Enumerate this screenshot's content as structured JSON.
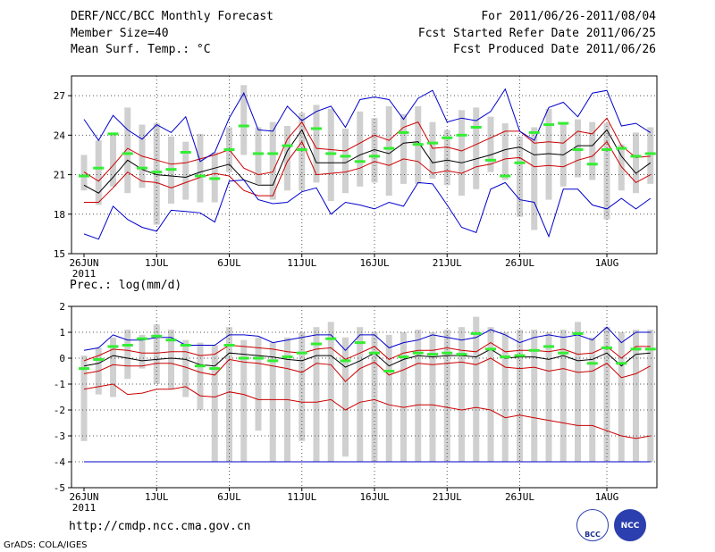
{
  "header": {
    "title": "DERF/NCC/BCC Monthly Forecast",
    "member_size": "Member Size=40",
    "variable": "Mean Surf. Temp.: °C",
    "period": "For 2011/06/26-2011/08/04",
    "start_date": "Fcst Started Refer Date 2011/06/25",
    "produced_date": "Fcst Produced Date 2011/06/26"
  },
  "footer": {
    "url": "http://cmdp.ncc.cma.gov.cn",
    "credit": "GrADS: COLA/IGES",
    "logo_bcc": "BCC",
    "logo_ncc": "NCC"
  },
  "colors": {
    "mean": "#000000",
    "inner_bound": "#cc0000",
    "outer_bound": "#0000cc",
    "climatology": "#33ee33",
    "spread": "#d0d0d0",
    "grid": "#555555"
  },
  "chart_data": [
    {
      "type": "line",
      "title": "Mean Surf. Temp.: °C",
      "xlabel": "",
      "ylabel": "",
      "days": 40,
      "start_date": "2011-06-26",
      "x_ticks": [
        {
          "day": 0,
          "label": "26JUN",
          "sublabel": "2011"
        },
        {
          "day": 5,
          "label": "1JUL"
        },
        {
          "day": 10,
          "label": "6JUL"
        },
        {
          "day": 15,
          "label": "11JUL"
        },
        {
          "day": 20,
          "label": "16JUL"
        },
        {
          "day": 25,
          "label": "21JUL"
        },
        {
          "day": 30,
          "label": "26JUL"
        },
        {
          "day": 36,
          "label": "1AUG"
        }
      ],
      "ylim": [
        15,
        28.5
      ],
      "y_ticks": [
        15,
        18,
        21,
        24,
        27
      ],
      "grid": true,
      "series": [
        {
          "name": "Ensemble mean",
          "role": "mean",
          "values": [
            20.2,
            19.6,
            20.8,
            22.1,
            21.4,
            21.0,
            20.9,
            20.8,
            21.2,
            21.5,
            21.8,
            20.6,
            20.2,
            20.2,
            22.8,
            24.4,
            21.9,
            21.9,
            21.9,
            22.5,
            22.9,
            22.6,
            23.4,
            23.5,
            21.9,
            22.1,
            21.9,
            22.2,
            22.5,
            22.9,
            23.1,
            22.5,
            22.6,
            22.5,
            23.2,
            23.2,
            24.4,
            22.4,
            21.1,
            21.9
          ]
        },
        {
          "name": "Upper inner bound",
          "role": "inner",
          "values": [
            21.2,
            20.5,
            21.7,
            23.0,
            22.4,
            22.1,
            21.8,
            21.9,
            22.2,
            22.5,
            22.9,
            21.5,
            21.0,
            21.2,
            23.7,
            25.0,
            23.0,
            22.9,
            22.8,
            23.4,
            24.0,
            23.6,
            24.6,
            25.0,
            23.0,
            23.1,
            22.8,
            23.3,
            23.8,
            24.3,
            24.3,
            23.4,
            23.5,
            23.4,
            24.3,
            24.1,
            25.3,
            23.2,
            22.3,
            22.4
          ]
        },
        {
          "name": "Lower inner bound",
          "role": "inner",
          "values": [
            18.9,
            18.9,
            20.0,
            21.2,
            20.5,
            20.4,
            20.0,
            20.4,
            20.8,
            21.1,
            20.9,
            19.8,
            19.4,
            19.4,
            22.0,
            23.5,
            21.0,
            21.1,
            21.2,
            21.5,
            22.0,
            21.7,
            22.2,
            22.0,
            21.1,
            21.3,
            21.1,
            21.6,
            21.8,
            22.2,
            22.3,
            21.6,
            21.7,
            21.6,
            22.1,
            22.4,
            23.5,
            21.6,
            20.4,
            21.0
          ]
        },
        {
          "name": "Ensemble maximum",
          "role": "outer",
          "values": [
            25.2,
            23.6,
            25.5,
            24.4,
            23.7,
            24.8,
            24.2,
            25.4,
            22.0,
            22.7,
            25.3,
            27.2,
            24.4,
            24.3,
            26.2,
            25.1,
            25.8,
            26.2,
            24.6,
            26.7,
            26.9,
            26.7,
            25.2,
            26.8,
            27.4,
            25.0,
            25.3,
            25.1,
            25.8,
            27.5,
            24.3,
            23.6,
            26.1,
            26.5,
            25.4,
            27.2,
            27.4,
            24.7,
            24.9,
            24.2
          ]
        },
        {
          "name": "Ensemble minimum",
          "role": "outer",
          "values": [
            16.5,
            16.1,
            18.6,
            17.6,
            17.0,
            16.7,
            18.3,
            18.2,
            18.1,
            17.4,
            20.5,
            20.6,
            19.1,
            18.8,
            18.9,
            19.7,
            20.0,
            18.0,
            18.9,
            18.7,
            18.4,
            18.9,
            18.6,
            20.4,
            20.3,
            18.7,
            17.0,
            16.6,
            19.9,
            20.4,
            19.1,
            18.9,
            16.3,
            19.9,
            19.9,
            18.7,
            18.4,
            19.2,
            18.4,
            19.2
          ]
        }
      ],
      "climatology": [
        20.9,
        21.5,
        24.1,
        22.6,
        21.5,
        21.2,
        21.4,
        22.7,
        20.9,
        20.7,
        22.9,
        24.7,
        22.6,
        22.6,
        23.2,
        22.9,
        24.5,
        22.6,
        22.4,
        22.0,
        22.4,
        23.0,
        24.2,
        23.3,
        23.4,
        23.8,
        24.0,
        24.6,
        22.1,
        20.9,
        21.9,
        24.2,
        24.8,
        24.9,
        22.9,
        21.8,
        22.9,
        23.0,
        22.4,
        22.6
      ],
      "spread_bars": [
        [
          19.8,
          22.5
        ],
        [
          18.7,
          23.6
        ],
        [
          20.1,
          24.2
        ],
        [
          19.6,
          26.1
        ],
        [
          20.0,
          24.8
        ],
        [
          17.2,
          24.9
        ],
        [
          18.8,
          23.9
        ],
        [
          19.1,
          23.5
        ],
        [
          18.9,
          24.1
        ],
        [
          18.9,
          22.7
        ],
        [
          21.2,
          24.6
        ],
        [
          22.5,
          27.8
        ],
        [
          20.3,
          24.6
        ],
        [
          19.1,
          25.0
        ],
        [
          19.8,
          24.7
        ],
        [
          19.8,
          25.7
        ],
        [
          20.4,
          26.3
        ],
        [
          19.0,
          26.0
        ],
        [
          19.6,
          24.5
        ],
        [
          20.1,
          25.8
        ],
        [
          20.4,
          25.3
        ],
        [
          19.4,
          26.2
        ],
        [
          20.3,
          25.6
        ],
        [
          20.3,
          26.2
        ],
        [
          20.7,
          25.0
        ],
        [
          20.2,
          24.4
        ],
        [
          19.4,
          25.9
        ],
        [
          19.9,
          26.1
        ],
        [
          21.2,
          25.4
        ],
        [
          20.6,
          24.9
        ],
        [
          17.8,
          23.9
        ],
        [
          16.8,
          24.6
        ],
        [
          19.1,
          26.0
        ],
        [
          20.1,
          24.9
        ],
        [
          20.8,
          25.2
        ],
        [
          20.6,
          25.0
        ],
        [
          17.6,
          24.9
        ],
        [
          19.8,
          23.3
        ],
        [
          19.6,
          24.2
        ],
        [
          20.3,
          24.6
        ]
      ]
    },
    {
      "type": "line",
      "title": "Prec.: log(mm/d)",
      "xlabel": "",
      "ylabel": "",
      "days": 40,
      "start_date": "2011-06-26",
      "x_ticks": [
        {
          "day": 0,
          "label": "26JUN",
          "sublabel": "2011"
        },
        {
          "day": 5,
          "label": "1JUL"
        },
        {
          "day": 10,
          "label": "6JUL"
        },
        {
          "day": 15,
          "label": "11JUL"
        },
        {
          "day": 20,
          "label": "16JUL"
        },
        {
          "day": 25,
          "label": "21JUL"
        },
        {
          "day": 30,
          "label": "26JUL"
        },
        {
          "day": 36,
          "label": "1AUG"
        }
      ],
      "ylim": [
        -5,
        2
      ],
      "y_ticks": [
        -5,
        -4,
        -3,
        -2,
        -1,
        0,
        1,
        2
      ],
      "grid": true,
      "series": [
        {
          "name": "Ensemble mean",
          "role": "mean",
          "values": [
            -0.3,
            -0.2,
            0.1,
            0.0,
            -0.1,
            -0.05,
            0.0,
            -0.05,
            -0.25,
            -0.3,
            0.2,
            0.15,
            0.1,
            0.05,
            -0.05,
            -0.1,
            0.1,
            0.1,
            -0.35,
            -0.1,
            0.2,
            -0.3,
            -0.05,
            0.1,
            0.05,
            0.1,
            0.1,
            0.05,
            0.35,
            0.0,
            0.05,
            0.05,
            -0.05,
            0.1,
            -0.1,
            -0.05,
            0.2,
            -0.3,
            0.15,
            0.2
          ]
        },
        {
          "name": "Upper inner bound",
          "role": "inner",
          "values": [
            -0.1,
            0.1,
            0.35,
            0.3,
            0.2,
            0.2,
            0.25,
            0.25,
            0.1,
            0.15,
            0.5,
            0.45,
            0.4,
            0.35,
            0.25,
            0.2,
            0.35,
            0.4,
            -0.05,
            0.2,
            0.45,
            -0.05,
            0.2,
            0.3,
            0.3,
            0.4,
            0.3,
            0.25,
            0.6,
            0.25,
            0.3,
            0.3,
            0.25,
            0.35,
            0.15,
            0.2,
            0.45,
            0.0,
            0.45,
            0.45
          ]
        },
        {
          "name": "Lower inner bound",
          "role": "inner",
          "values": [
            -0.6,
            -0.5,
            -0.25,
            -0.3,
            -0.3,
            -0.2,
            -0.2,
            -0.35,
            -0.55,
            -0.65,
            -0.05,
            -0.15,
            -0.2,
            -0.3,
            -0.4,
            -0.55,
            -0.2,
            -0.25,
            -0.9,
            -0.4,
            -0.15,
            -0.65,
            -0.45,
            -0.2,
            -0.25,
            -0.2,
            -0.15,
            -0.25,
            0.0,
            -0.35,
            -0.4,
            -0.35,
            -0.5,
            -0.4,
            -0.55,
            -0.5,
            -0.2,
            -0.75,
            -0.6,
            -0.3
          ]
        },
        {
          "name": "Upper red band",
          "role": "inner",
          "values": [
            -1.2,
            -1.1,
            -1.0,
            -1.4,
            -1.35,
            -1.2,
            -1.2,
            -1.1,
            -1.45,
            -1.5,
            -1.3,
            -1.4,
            -1.6,
            -1.6,
            -1.6,
            -1.7,
            -1.7,
            -1.6,
            -2.0,
            -1.7,
            -1.6,
            -1.8,
            -1.9,
            -1.8,
            -1.8,
            -1.9,
            -2.0,
            -1.9,
            -2.0,
            -2.3,
            -2.2,
            -2.3,
            -2.4,
            -2.5,
            -2.6,
            -2.6,
            -2.8,
            -3.0,
            -3.1,
            -3.0
          ]
        },
        {
          "name": "Ensemble maximum",
          "role": "outer",
          "values": [
            0.3,
            0.4,
            0.9,
            0.7,
            0.7,
            0.8,
            0.8,
            0.5,
            0.5,
            0.5,
            0.9,
            0.9,
            0.85,
            0.6,
            0.7,
            0.8,
            0.9,
            0.9,
            0.3,
            0.9,
            0.9,
            0.4,
            0.6,
            0.7,
            0.9,
            0.8,
            0.7,
            0.8,
            1.1,
            0.9,
            0.6,
            0.8,
            0.9,
            0.8,
            0.9,
            0.7,
            1.2,
            0.6,
            1.0,
            1.0
          ]
        },
        {
          "name": "Ensemble minimum",
          "role": "outer",
          "values": [
            -4.0,
            -4.0,
            -4.0,
            -4.0,
            -4.0,
            -4.0,
            -4.0,
            -4.0,
            -4.0,
            -4.0,
            -4.0,
            -4.0,
            -4.0,
            -4.0,
            -4.0,
            -4.0,
            -4.0,
            -4.0,
            -4.0,
            -4.0,
            -4.0,
            -4.0,
            -4.0,
            -4.0,
            -4.0,
            -4.0,
            -4.0,
            -4.0,
            -4.0,
            -4.0,
            -4.0,
            -4.0,
            -4.0,
            -4.0,
            -4.0,
            -4.0,
            -4.0,
            -4.0,
            -4.0,
            -4.0
          ]
        }
      ],
      "climatology": [
        -0.4,
        -0.05,
        0.45,
        0.5,
        0.75,
        0.85,
        0.7,
        0.5,
        -0.3,
        -0.4,
        0.5,
        0.0,
        0.0,
        -0.1,
        0.05,
        0.2,
        0.55,
        0.75,
        -0.1,
        0.6,
        0.2,
        -0.5,
        0.05,
        0.2,
        0.15,
        0.2,
        0.15,
        0.95,
        0.35,
        0.05,
        0.1,
        0.3,
        0.45,
        0.2,
        0.95,
        -0.2,
        0.4,
        -0.2,
        0.35,
        0.35
      ],
      "spread_bars": [
        [
          -3.2,
          0.1
        ],
        [
          -1.4,
          0.4
        ],
        [
          -1.5,
          0.8
        ],
        [
          -0.8,
          1.1
        ],
        [
          -0.4,
          0.9
        ],
        [
          -1.0,
          1.3
        ],
        [
          -1.2,
          1.1
        ],
        [
          -1.5,
          0.7
        ],
        [
          -2.0,
          0.6
        ],
        [
          -4.0,
          0.5
        ],
        [
          -4.0,
          1.2
        ],
        [
          -4.0,
          0.7
        ],
        [
          -2.8,
          0.8
        ],
        [
          -4.0,
          0.6
        ],
        [
          -4.0,
          0.8
        ],
        [
          -3.2,
          1.0
        ],
        [
          -4.0,
          1.2
        ],
        [
          -4.0,
          1.4
        ],
        [
          -3.8,
          0.8
        ],
        [
          -4.0,
          1.2
        ],
        [
          -4.0,
          1.0
        ],
        [
          -4.0,
          0.9
        ],
        [
          -4.0,
          1.0
        ],
        [
          -4.0,
          1.1
        ],
        [
          -4.0,
          1.0
        ],
        [
          -4.0,
          1.1
        ],
        [
          -4.0,
          1.2
        ],
        [
          -4.0,
          1.6
        ],
        [
          -4.0,
          1.2
        ],
        [
          -4.0,
          1.0
        ],
        [
          -4.0,
          1.1
        ],
        [
          -4.0,
          1.1
        ],
        [
          -4.0,
          1.0
        ],
        [
          -4.0,
          1.1
        ],
        [
          -4.0,
          1.4
        ],
        [
          -4.0,
          0.8
        ],
        [
          -4.0,
          1.2
        ],
        [
          -4.0,
          1.0
        ],
        [
          -4.0,
          1.1
        ],
        [
          -4.0,
          1.1
        ]
      ]
    }
  ]
}
